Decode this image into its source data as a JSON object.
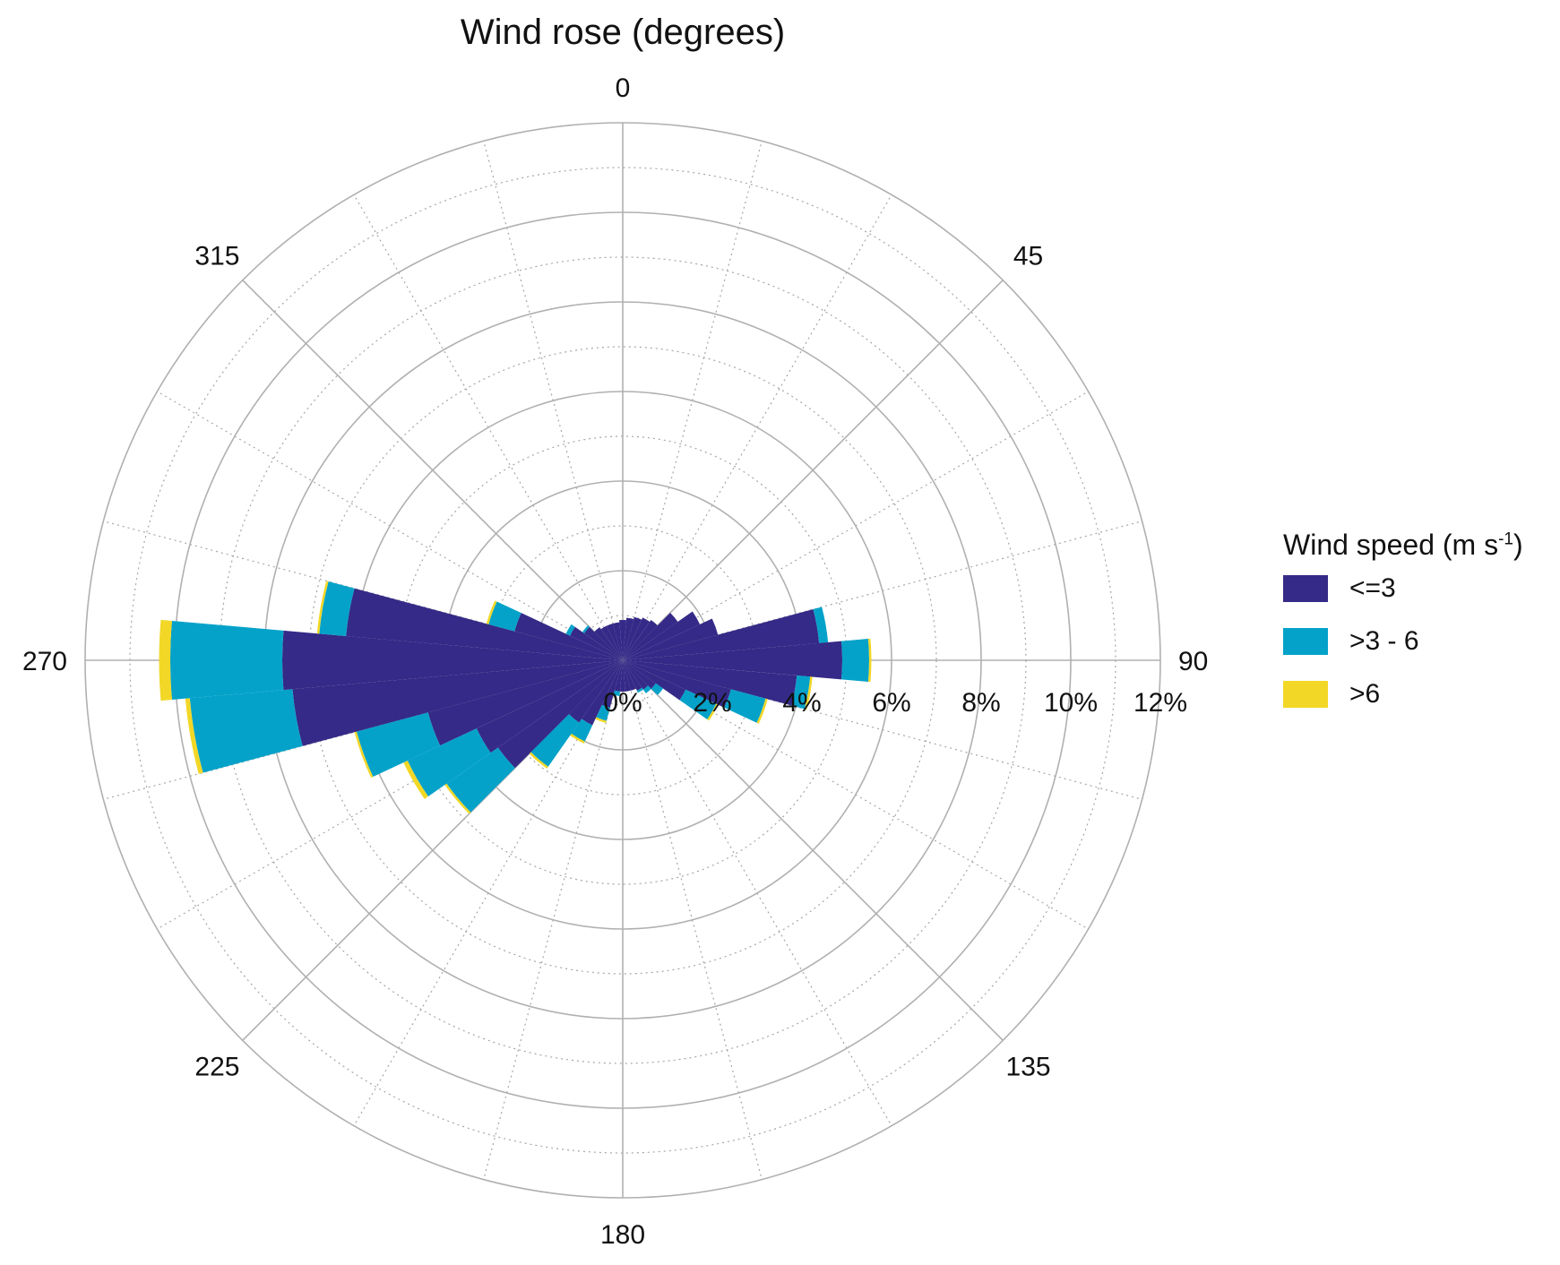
{
  "chart_data": {
    "type": "wind-rose",
    "title": "Wind rose (degrees)",
    "direction_ticks": [
      "0",
      "45",
      "90",
      "135",
      "180",
      "225",
      "270",
      "315"
    ],
    "radial_ticks": [
      "0%",
      "2%",
      "4%",
      "6%",
      "8%",
      "10%",
      "12%"
    ],
    "radial_max": 12,
    "legend": {
      "title": "Wind speed (m s",
      "title_sup": "-1",
      "title_end": ")",
      "placement": "right"
    },
    "series": [
      {
        "name": "<=3",
        "color": "#352a87"
      },
      {
        "name": ">3 - 6",
        "color": "#04a2c9"
      },
      {
        "name": ">6",
        "color": "#f2d726"
      }
    ],
    "sector_width_deg": 10,
    "directions": [
      0,
      10,
      20,
      30,
      40,
      50,
      60,
      70,
      80,
      90,
      100,
      110,
      120,
      130,
      140,
      150,
      160,
      170,
      180,
      190,
      200,
      210,
      220,
      230,
      240,
      250,
      260,
      270,
      280,
      290,
      300,
      310,
      320,
      330,
      340,
      350
    ],
    "cumulative": [
      [
        0.9,
        0.9,
        0.9
      ],
      [
        0.95,
        0.95,
        0.95
      ],
      [
        1.0,
        1.0,
        1.0
      ],
      [
        1.05,
        1.05,
        1.05
      ],
      [
        1.1,
        1.1,
        1.1
      ],
      [
        1.5,
        1.5,
        1.5
      ],
      [
        1.9,
        1.9,
        1.9
      ],
      [
        2.2,
        2.2,
        2.2
      ],
      [
        4.4,
        4.6,
        4.6
      ],
      [
        4.9,
        5.5,
        5.55
      ],
      [
        3.9,
        4.2,
        4.25
      ],
      [
        2.5,
        3.3,
        3.35
      ],
      [
        1.55,
        2.3,
        2.35
      ],
      [
        0.9,
        1.1,
        1.1
      ],
      [
        0.8,
        0.9,
        0.9
      ],
      [
        0.75,
        0.8,
        0.8
      ],
      [
        0.7,
        0.7,
        0.7
      ],
      [
        0.7,
        0.7,
        0.7
      ],
      [
        0.7,
        0.7,
        0.7
      ],
      [
        0.7,
        0.8,
        0.8
      ],
      [
        1.1,
        1.4,
        1.45
      ],
      [
        1.6,
        2.0,
        2.05
      ],
      [
        1.7,
        2.9,
        2.95
      ],
      [
        3.4,
        4.8,
        4.85
      ],
      [
        3.6,
        5.3,
        5.4
      ],
      [
        4.5,
        6.15,
        6.2
      ],
      [
        7.4,
        9.7,
        9.8
      ],
      [
        7.6,
        10.1,
        10.35
      ],
      [
        6.2,
        6.8,
        6.85
      ],
      [
        2.5,
        3.1,
        3.15
      ],
      [
        1.3,
        1.4,
        1.4
      ],
      [
        1.05,
        1.1,
        1.1
      ],
      [
        0.9,
        0.9,
        0.9
      ],
      [
        0.85,
        0.85,
        0.85
      ],
      [
        0.85,
        0.85,
        0.85
      ],
      [
        0.85,
        0.85,
        0.85
      ]
    ]
  }
}
